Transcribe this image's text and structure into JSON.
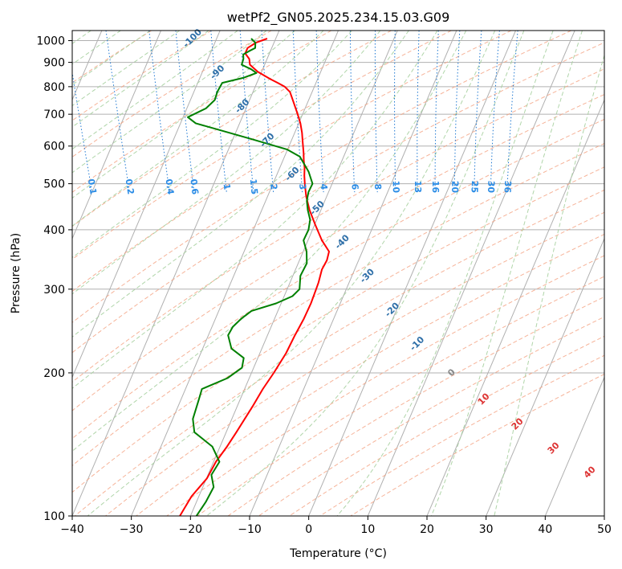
{
  "chart_data": {
    "type": "skew-t",
    "title": "wetPf2_GN05.2025.234.15.03.G09",
    "xlabel": "Temperature (°C)",
    "ylabel": "Pressure (hPa)",
    "xlim": [
      -40,
      50
    ],
    "ylim": [
      1050,
      100
    ],
    "y_scale": "log",
    "grid": true,
    "x_ticks": [
      -40,
      -30,
      -20,
      -10,
      0,
      10,
      20,
      30,
      40,
      50
    ],
    "x_tick_labels": [
      "−40",
      "−30",
      "−20",
      "−10",
      "0",
      "10",
      "20",
      "30",
      "40",
      "50"
    ],
    "y_ticks": [
      1000,
      900,
      800,
      700,
      600,
      500,
      400,
      300,
      200,
      100
    ],
    "y_tick_labels": [
      "1000",
      "900",
      "800",
      "700",
      "600",
      "500",
      "400",
      "300",
      "200",
      "100"
    ],
    "mixing_ratio_labels": [
      "0.1",
      "0.2",
      "0.4",
      "0.6",
      "1",
      "1.5",
      "2",
      "3",
      "4",
      "6",
      "8",
      "10",
      "13",
      "16",
      "20",
      "25",
      "30",
      "36"
    ],
    "dry_adiabat_labels": [
      "-100",
      "-90",
      "-80",
      "-70",
      "-60",
      "-50",
      "-40",
      "-30",
      "-20",
      "-10"
    ],
    "moist_adiabat_labels": [
      "0",
      "10",
      "20",
      "30",
      "40"
    ],
    "series": [
      {
        "color": "#ff0000",
        "points": [
          [
            1010,
            -7.6
          ],
          [
            990,
            -9.8
          ],
          [
            965,
            -11.6
          ],
          [
            940,
            -12.4
          ],
          [
            915,
            -12.1
          ],
          [
            890,
            -12.4
          ],
          [
            860,
            -11.6
          ],
          [
            830,
            -10.0
          ],
          [
            815,
            -9.0
          ],
          [
            800,
            -8.1
          ],
          [
            780,
            -7.6
          ],
          [
            750,
            -7.7
          ],
          [
            700,
            -7.9
          ],
          [
            670,
            -8.1
          ],
          [
            640,
            -8.5
          ],
          [
            610,
            -9.1
          ],
          [
            580,
            -9.7
          ],
          [
            560,
            -10.2
          ],
          [
            540,
            -10.6
          ],
          [
            520,
            -11.2
          ],
          [
            500,
            -11.7
          ],
          [
            470,
            -12.4
          ],
          [
            440,
            -12.8
          ],
          [
            410,
            -12.9
          ],
          [
            380,
            -12.9
          ],
          [
            360,
            -12.5
          ],
          [
            345,
            -13.5
          ],
          [
            330,
            -15.0
          ],
          [
            310,
            -16.5
          ],
          [
            300,
            -17.4
          ],
          [
            280,
            -19.3
          ],
          [
            260,
            -21.6
          ],
          [
            240,
            -24.3
          ],
          [
            220,
            -27.1
          ],
          [
            200,
            -30.6
          ],
          [
            185,
            -33.6
          ],
          [
            170,
            -36.6
          ],
          [
            150,
            -41.2
          ],
          [
            140,
            -43.8
          ],
          [
            130,
            -46.8
          ],
          [
            120,
            -49.5
          ],
          [
            110,
            -53.4
          ],
          [
            100,
            -56.8
          ]
        ]
      },
      {
        "color": "#008000",
        "points": [
          [
            1010,
            -10.3
          ],
          [
            990,
            -9.9
          ],
          [
            965,
            -10.3
          ],
          [
            950,
            -11.6
          ],
          [
            935,
            -12.8
          ],
          [
            915,
            -13.1
          ],
          [
            890,
            -13.8
          ],
          [
            870,
            -12.5
          ],
          [
            855,
            -11.9
          ],
          [
            835,
            -14.5
          ],
          [
            815,
            -18.4
          ],
          [
            780,
            -19.9
          ],
          [
            750,
            -20.9
          ],
          [
            720,
            -23.0
          ],
          [
            690,
            -26.7
          ],
          [
            670,
            -25.8
          ],
          [
            650,
            -22.5
          ],
          [
            620,
            -17.4
          ],
          [
            590,
            -12.2
          ],
          [
            570,
            -10.6
          ],
          [
            550,
            -10.4
          ],
          [
            530,
            -10.2
          ],
          [
            500,
            -10.4
          ],
          [
            480,
            -11.7
          ],
          [
            460,
            -12.6
          ],
          [
            440,
            -13.1
          ],
          [
            420,
            -13.4
          ],
          [
            400,
            -14.4
          ],
          [
            380,
            -16.0
          ],
          [
            360,
            -16.3
          ],
          [
            340,
            -17.1
          ],
          [
            320,
            -19.1
          ],
          [
            300,
            -20.2
          ],
          [
            290,
            -21.9
          ],
          [
            280,
            -25.2
          ],
          [
            270,
            -29.9
          ],
          [
            260,
            -32.2
          ],
          [
            250,
            -34.2
          ],
          [
            240,
            -35.6
          ],
          [
            225,
            -36.0
          ],
          [
            215,
            -34.6
          ],
          [
            205,
            -35.6
          ],
          [
            195,
            -38.8
          ],
          [
            185,
            -43.9
          ],
          [
            175,
            -45.3
          ],
          [
            160,
            -47.6
          ],
          [
            150,
            -48.3
          ],
          [
            140,
            -46.3
          ],
          [
            130,
            -46.2
          ],
          [
            122,
            -48.5
          ],
          [
            115,
            -49.0
          ],
          [
            107,
            -51.4
          ],
          [
            100,
            -54.0
          ]
        ]
      }
    ]
  }
}
